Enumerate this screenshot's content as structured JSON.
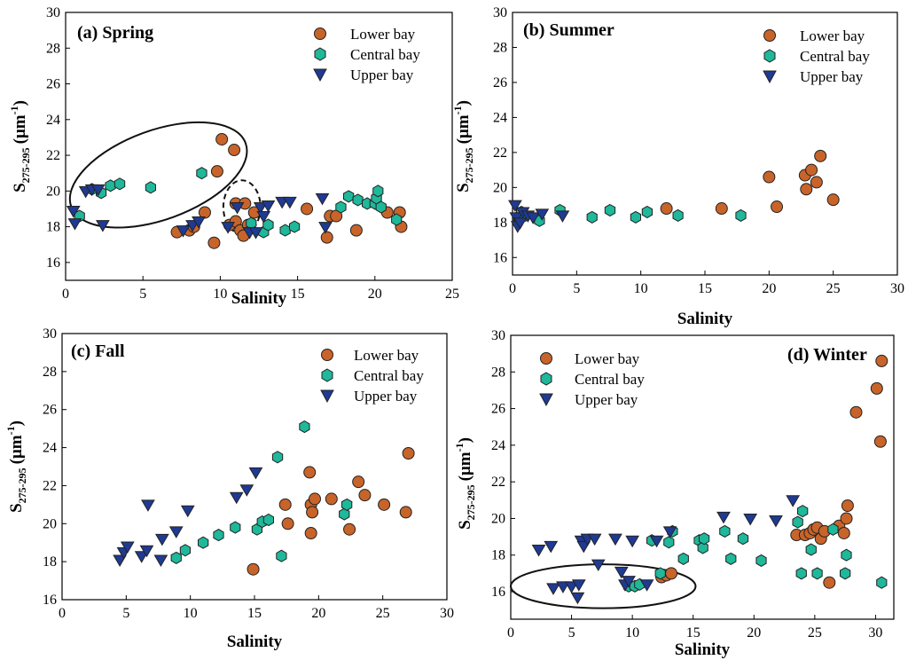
{
  "figure": {
    "series_order": [
      "Lower bay",
      "Central bay",
      "Upper bay"
    ],
    "colors": {
      "Lower bay": "#C8642A",
      "Central bay": "#1FB89A",
      "Upper bay": "#1F3A93",
      "outline": "#222222"
    }
  },
  "chart_data": [
    {
      "id": "spring",
      "type": "scatter",
      "title": "(a) Spring",
      "xlabel": "Salinity",
      "ylabel_main": "S",
      "ylabel_sub": "275-295",
      "ylabel_unit": "(μm",
      "ylabel_sup": "-1",
      "ylabel_close": ")",
      "xlim": [
        0,
        25
      ],
      "ylim": [
        15,
        30
      ],
      "xticks": [
        0,
        5,
        10,
        15,
        20,
        25
      ],
      "yticks": [
        16,
        18,
        20,
        22,
        24,
        26,
        28,
        30
      ],
      "legend_position": "top-right",
      "series": [
        {
          "name": "Lower bay",
          "marker": "circle",
          "points": [
            [
              7.2,
              17.7
            ],
            [
              8.0,
              17.8
            ],
            [
              8.3,
              18.0
            ],
            [
              9.0,
              18.8
            ],
            [
              9.6,
              17.1
            ],
            [
              9.8,
              21.1
            ],
            [
              10.1,
              22.9
            ],
            [
              10.6,
              18.1
            ],
            [
              10.9,
              22.3
            ],
            [
              11.0,
              18.3
            ],
            [
              11.0,
              19.3
            ],
            [
              11.3,
              17.8
            ],
            [
              11.5,
              17.5
            ],
            [
              11.6,
              19.3
            ],
            [
              11.8,
              18.1
            ],
            [
              12.2,
              18.8
            ],
            [
              15.6,
              19.0
            ],
            [
              16.9,
              17.4
            ],
            [
              17.1,
              18.6
            ],
            [
              17.5,
              18.6
            ],
            [
              18.8,
              17.8
            ],
            [
              20.8,
              18.8
            ],
            [
              21.6,
              18.8
            ],
            [
              21.7,
              18.0
            ]
          ]
        },
        {
          "name": "Central bay",
          "marker": "hexagon",
          "points": [
            [
              0.9,
              18.6
            ],
            [
              1.7,
              20.1
            ],
            [
              2.3,
              19.9
            ],
            [
              2.9,
              20.3
            ],
            [
              3.5,
              20.4
            ],
            [
              5.5,
              20.2
            ],
            [
              8.8,
              21.0
            ],
            [
              12.0,
              18.2
            ],
            [
              12.8,
              17.7
            ],
            [
              13.1,
              18.1
            ],
            [
              14.2,
              17.8
            ],
            [
              14.8,
              18.0
            ],
            [
              17.8,
              19.1
            ],
            [
              18.3,
              19.7
            ],
            [
              18.9,
              19.5
            ],
            [
              19.5,
              19.3
            ],
            [
              20.0,
              19.3
            ],
            [
              20.1,
              19.6
            ],
            [
              20.2,
              20.0
            ],
            [
              20.4,
              19.1
            ],
            [
              21.4,
              18.4
            ]
          ]
        },
        {
          "name": "Upper bay",
          "marker": "triangle-down",
          "points": [
            [
              0.5,
              18.9
            ],
            [
              0.6,
              18.2
            ],
            [
              1.3,
              20.0
            ],
            [
              1.7,
              20.1
            ],
            [
              2.1,
              20.1
            ],
            [
              2.4,
              18.1
            ],
            [
              7.6,
              17.8
            ],
            [
              8.2,
              18.1
            ],
            [
              8.6,
              18.3
            ],
            [
              10.5,
              18.0
            ],
            [
              11.1,
              19.1
            ],
            [
              11.9,
              17.7
            ],
            [
              12.3,
              17.7
            ],
            [
              12.6,
              19.1
            ],
            [
              12.8,
              18.6
            ],
            [
              13.1,
              19.2
            ],
            [
              14.0,
              19.4
            ],
            [
              14.5,
              19.4
            ],
            [
              16.6,
              19.6
            ],
            [
              16.8,
              18.0
            ]
          ]
        }
      ],
      "annotations": [
        {
          "shape": "ellipse",
          "style": "solid",
          "cx": 6.0,
          "cy": 20.9,
          "rx": 6.0,
          "ry": 2.5,
          "rotate": -20
        },
        {
          "shape": "ellipse",
          "style": "dashed",
          "cx": 11.4,
          "cy": 19.1,
          "rx": 1.2,
          "ry": 1.5,
          "rotate": 0
        }
      ]
    },
    {
      "id": "summer",
      "type": "scatter",
      "title": "(b) Summer",
      "xlabel": "Salinity",
      "ylabel_main": "S",
      "ylabel_sub": "275-295",
      "ylabel_unit": "(μm",
      "ylabel_sup": "-1",
      "ylabel_close": ")",
      "xlim": [
        0,
        30
      ],
      "ylim": [
        15,
        30
      ],
      "xticks": [
        0,
        5,
        10,
        15,
        20,
        25,
        30
      ],
      "yticks": [
        16,
        18,
        20,
        22,
        24,
        26,
        28,
        30
      ],
      "legend_position": "top-right",
      "series": [
        {
          "name": "Lower bay",
          "marker": "circle",
          "points": [
            [
              12.0,
              18.8
            ],
            [
              16.3,
              18.8
            ],
            [
              20.0,
              20.6
            ],
            [
              20.6,
              18.9
            ],
            [
              22.8,
              20.7
            ],
            [
              22.9,
              19.9
            ],
            [
              23.3,
              21.0
            ],
            [
              23.7,
              20.3
            ],
            [
              24.0,
              21.8
            ],
            [
              25.0,
              19.3
            ]
          ]
        },
        {
          "name": "Central bay",
          "marker": "hexagon",
          "points": [
            [
              0.4,
              18.3
            ],
            [
              0.7,
              18.6
            ],
            [
              1.0,
              18.4
            ],
            [
              2.1,
              18.1
            ],
            [
              3.7,
              18.7
            ],
            [
              6.2,
              18.3
            ],
            [
              7.6,
              18.7
            ],
            [
              9.6,
              18.3
            ],
            [
              10.5,
              18.6
            ],
            [
              12.9,
              18.4
            ],
            [
              17.8,
              18.4
            ]
          ]
        },
        {
          "name": "Upper bay",
          "marker": "triangle-down",
          "points": [
            [
              0.2,
              19.0
            ],
            [
              0.3,
              18.3
            ],
            [
              0.4,
              17.8
            ],
            [
              0.6,
              18.0
            ],
            [
              0.8,
              18.6
            ],
            [
              1.2,
              18.4
            ],
            [
              1.6,
              18.3
            ],
            [
              2.3,
              18.5
            ],
            [
              3.9,
              18.4
            ]
          ]
        }
      ],
      "annotations": []
    },
    {
      "id": "fall",
      "type": "scatter",
      "title": "(c) Fall",
      "xlabel": "Salinity",
      "ylabel_main": "S",
      "ylabel_sub": "275-295",
      "ylabel_unit": "(μm",
      "ylabel_sup": "-1",
      "ylabel_close": ")",
      "xlim": [
        0,
        30
      ],
      "ylim": [
        16,
        30
      ],
      "xticks": [
        0,
        5,
        10,
        15,
        20,
        25,
        30
      ],
      "yticks": [
        16,
        18,
        20,
        22,
        24,
        26,
        28,
        30
      ],
      "legend_position": "top-right",
      "series": [
        {
          "name": "Lower bay",
          "marker": "circle",
          "points": [
            [
              14.9,
              17.6
            ],
            [
              17.4,
              21.0
            ],
            [
              17.6,
              20.0
            ],
            [
              19.3,
              22.7
            ],
            [
              19.4,
              21.0
            ],
            [
              19.4,
              19.5
            ],
            [
              19.5,
              20.6
            ],
            [
              19.7,
              21.3
            ],
            [
              21.0,
              21.3
            ],
            [
              22.4,
              19.7
            ],
            [
              23.1,
              22.2
            ],
            [
              23.6,
              21.5
            ],
            [
              25.1,
              21.0
            ],
            [
              26.8,
              20.6
            ],
            [
              27.0,
              23.7
            ]
          ]
        },
        {
          "name": "Central bay",
          "marker": "hexagon",
          "points": [
            [
              8.9,
              18.2
            ],
            [
              9.6,
              18.6
            ],
            [
              11.0,
              19.0
            ],
            [
              12.2,
              19.4
            ],
            [
              13.5,
              19.8
            ],
            [
              15.2,
              19.7
            ],
            [
              15.6,
              20.1
            ],
            [
              16.1,
              20.2
            ],
            [
              16.8,
              23.5
            ],
            [
              17.1,
              18.3
            ],
            [
              18.9,
              25.1
            ],
            [
              22.0,
              20.5
            ],
            [
              22.2,
              21.0
            ]
          ]
        },
        {
          "name": "Upper bay",
          "marker": "triangle-down",
          "points": [
            [
              4.5,
              18.1
            ],
            [
              4.8,
              18.5
            ],
            [
              5.1,
              18.8
            ],
            [
              6.2,
              18.3
            ],
            [
              6.6,
              18.6
            ],
            [
              6.7,
              21.0
            ],
            [
              7.7,
              18.1
            ],
            [
              7.8,
              19.2
            ],
            [
              8.9,
              19.6
            ],
            [
              9.8,
              20.7
            ],
            [
              13.6,
              21.4
            ],
            [
              14.4,
              21.8
            ],
            [
              15.1,
              22.7
            ]
          ]
        }
      ],
      "annotations": []
    },
    {
      "id": "winter",
      "type": "scatter",
      "title": "(d) Winter",
      "xlabel": "Salinity",
      "ylabel_main": "S",
      "ylabel_sub": "275-295",
      "ylabel_unit": "(μm",
      "ylabel_sup": "-1",
      "ylabel_close": ")",
      "xlim": [
        0,
        31.5
      ],
      "ylim": [
        14.5,
        30
      ],
      "xticks": [
        0,
        5,
        10,
        15,
        20,
        25,
        30
      ],
      "yticks": [
        16,
        18,
        20,
        22,
        24,
        26,
        28,
        30
      ],
      "legend_position": "top-left",
      "series": [
        {
          "name": "Lower bay",
          "marker": "circle",
          "points": [
            [
              12.4,
              16.8
            ],
            [
              12.8,
              16.9
            ],
            [
              13.2,
              17.0
            ],
            [
              23.5,
              19.1
            ],
            [
              24.2,
              19.1
            ],
            [
              24.6,
              19.2
            ],
            [
              24.9,
              19.4
            ],
            [
              25.2,
              19.5
            ],
            [
              25.5,
              18.9
            ],
            [
              25.8,
              19.3
            ],
            [
              26.2,
              16.5
            ],
            [
              27.0,
              19.6
            ],
            [
              27.4,
              19.2
            ],
            [
              27.6,
              20.0
            ],
            [
              27.7,
              20.7
            ],
            [
              28.4,
              25.8
            ],
            [
              30.1,
              27.1
            ],
            [
              30.4,
              24.2
            ],
            [
              30.5,
              28.6
            ]
          ]
        },
        {
          "name": "Central bay",
          "marker": "hexagon",
          "points": [
            [
              9.7,
              16.3
            ],
            [
              10.2,
              16.3
            ],
            [
              10.6,
              16.4
            ],
            [
              11.6,
              18.8
            ],
            [
              12.3,
              17.0
            ],
            [
              13.0,
              18.7
            ],
            [
              13.3,
              19.3
            ],
            [
              14.2,
              17.8
            ],
            [
              15.5,
              18.8
            ],
            [
              15.8,
              18.4
            ],
            [
              15.9,
              18.9
            ],
            [
              17.6,
              19.3
            ],
            [
              18.1,
              17.8
            ],
            [
              19.1,
              18.9
            ],
            [
              20.6,
              17.7
            ],
            [
              23.6,
              19.8
            ],
            [
              23.9,
              17.0
            ],
            [
              24.0,
              20.4
            ],
            [
              24.7,
              18.3
            ],
            [
              25.2,
              17.0
            ],
            [
              26.5,
              19.4
            ],
            [
              27.5,
              17.0
            ],
            [
              27.6,
              18.0
            ],
            [
              30.5,
              16.5
            ]
          ]
        },
        {
          "name": "Upper bay",
          "marker": "triangle-down",
          "points": [
            [
              2.3,
              18.3
            ],
            [
              3.3,
              18.5
            ],
            [
              3.5,
              16.2
            ],
            [
              4.3,
              16.3
            ],
            [
              5.0,
              16.3
            ],
            [
              5.5,
              15.7
            ],
            [
              5.6,
              16.4
            ],
            [
              5.8,
              18.8
            ],
            [
              6.0,
              18.5
            ],
            [
              6.3,
              18.9
            ],
            [
              6.9,
              18.9
            ],
            [
              7.2,
              17.5
            ],
            [
              8.6,
              18.9
            ],
            [
              9.1,
              17.1
            ],
            [
              9.4,
              16.4
            ],
            [
              9.7,
              16.6
            ],
            [
              10.0,
              18.8
            ],
            [
              11.2,
              16.4
            ],
            [
              12.0,
              18.8
            ],
            [
              13.1,
              19.3
            ],
            [
              17.5,
              20.1
            ],
            [
              19.7,
              20.0
            ],
            [
              21.8,
              19.9
            ],
            [
              23.2,
              21.0
            ]
          ]
        }
      ],
      "annotations": [
        {
          "shape": "ellipse",
          "style": "solid",
          "cx": 7.6,
          "cy": 16.3,
          "rx": 7.6,
          "ry": 1.2,
          "rotate": 0
        }
      ]
    }
  ]
}
